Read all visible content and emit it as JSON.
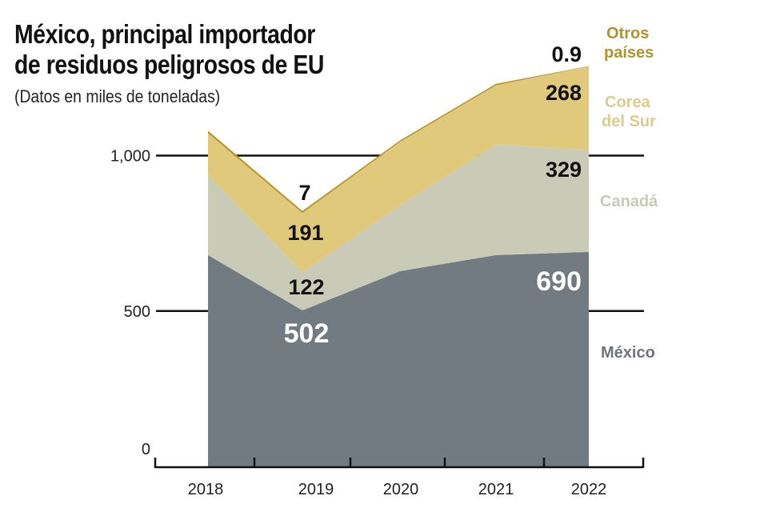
{
  "title_line1": "México, principal importador",
  "title_line2": "de residuos peligrosos de EU",
  "subtitle": "(Datos en miles de toneladas)",
  "colors": {
    "mexico": "#727a82",
    "canada": "#c9cbb7",
    "corea": "#e0c97a",
    "otros": "#b8982e",
    "legend_mexico": "#6e757c",
    "legend_canada": "#c8c9b8",
    "legend_corea": "#dccb8e",
    "legend_otros": "#b0922e"
  },
  "chart_data": {
    "type": "area",
    "stacked": true,
    "title": "México, principal importador de residuos peligrosos de EU",
    "subtitle": "(Datos en miles de toneladas)",
    "xlabel": "",
    "ylabel": "",
    "x": [
      "2018",
      "2019",
      "2020",
      "2021",
      "2022"
    ],
    "ylim": [
      0,
      1300
    ],
    "yticks": [
      0,
      500,
      1000
    ],
    "ytick_labels": [
      "0",
      "500",
      "1,000"
    ],
    "grid": true,
    "legend": "right",
    "series": [
      {
        "name": "México",
        "values": [
          680,
          502,
          628,
          680,
          690
        ]
      },
      {
        "name": "Canadá",
        "values": [
          258,
          122,
          213,
          356,
          329
        ]
      },
      {
        "name": "Corea del Sur",
        "values": [
          134,
          191,
          203,
          190,
          268
        ]
      },
      {
        "name": "Otros países",
        "values": [
          8,
          7,
          5,
          5,
          0.9
        ]
      }
    ],
    "data_labels": [
      {
        "series": "México",
        "x": "2019",
        "text": "502"
      },
      {
        "series": "Canadá",
        "x": "2019",
        "text": "122"
      },
      {
        "series": "Corea del Sur",
        "x": "2019",
        "text": "191"
      },
      {
        "series": "Otros países",
        "x": "2019",
        "text": "7"
      },
      {
        "series": "México",
        "x": "2022",
        "text": "690"
      },
      {
        "series": "Canadá",
        "x": "2022",
        "text": "329"
      },
      {
        "series": "Corea del Sur",
        "x": "2022",
        "text": "268"
      },
      {
        "series": "Otros países",
        "x": "2022",
        "text": "0.9"
      }
    ],
    "legend_labels": {
      "otros_line1": "Otros",
      "otros_line2": "países",
      "corea_line1": "Corea",
      "corea_line2": "del Sur",
      "canada": "Canadá",
      "mexico": "México"
    }
  }
}
